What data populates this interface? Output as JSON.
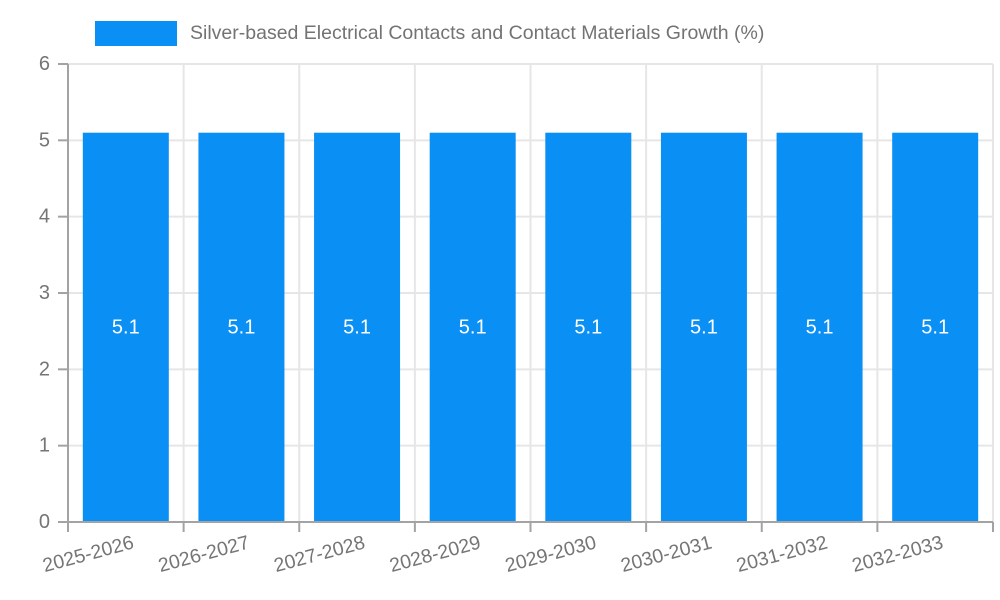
{
  "legend": {
    "label": "Silver-based Electrical Contacts and Contact Materials Growth (%)"
  },
  "chart_data": {
    "type": "bar",
    "title": "Silver-based Electrical Contacts and Contact Materials Growth (%)",
    "categories": [
      "2025-2026",
      "2026-2027",
      "2027-2028",
      "2028-2029",
      "2029-2030",
      "2030-2031",
      "2031-2032",
      "2032-2033"
    ],
    "values": [
      5.1,
      5.1,
      5.1,
      5.1,
      5.1,
      5.1,
      5.1,
      5.1
    ],
    "value_labels": [
      "5.1",
      "5.1",
      "5.1",
      "5.1",
      "5.1",
      "5.1",
      "5.1",
      "5.1"
    ],
    "xlabel": "",
    "ylabel": "",
    "ylim": [
      0,
      6
    ],
    "yticks": [
      0,
      1,
      2,
      3,
      4,
      5,
      6
    ],
    "grid": true,
    "legend_position": "top-left",
    "x_tick_rotation_deg": -15,
    "colors": {
      "bar": "#0a8ff5",
      "bar_label": "#ffffff",
      "axis": "#a3a3a3",
      "grid": "#e6e6e6",
      "tick_text": "#757575"
    }
  }
}
